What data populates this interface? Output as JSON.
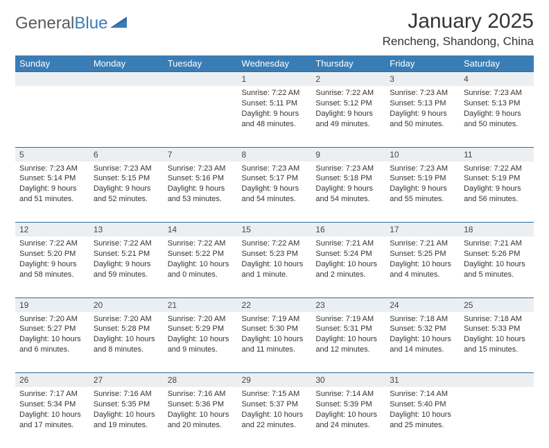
{
  "logo": {
    "word1": "General",
    "word2": "Blue"
  },
  "title": "January 2025",
  "location": "Rencheng, Shandong, China",
  "colors": {
    "header_bg": "#3a7db5",
    "header_text": "#ffffff",
    "daynum_bg": "#eceff2",
    "border": "#2d6a9c",
    "text": "#333333",
    "logo_gray": "#5a5a5a",
    "logo_blue": "#3a7db5",
    "page_bg": "#ffffff"
  },
  "weekdays": [
    "Sunday",
    "Monday",
    "Tuesday",
    "Wednesday",
    "Thursday",
    "Friday",
    "Saturday"
  ],
  "weeks": [
    {
      "nums": [
        "",
        "",
        "",
        "1",
        "2",
        "3",
        "4"
      ],
      "cells": [
        null,
        null,
        null,
        {
          "sunrise": "7:22 AM",
          "sunset": "5:11 PM",
          "daylight": "9 hours and 48 minutes."
        },
        {
          "sunrise": "7:22 AM",
          "sunset": "5:12 PM",
          "daylight": "9 hours and 49 minutes."
        },
        {
          "sunrise": "7:23 AM",
          "sunset": "5:13 PM",
          "daylight": "9 hours and 50 minutes."
        },
        {
          "sunrise": "7:23 AM",
          "sunset": "5:13 PM",
          "daylight": "9 hours and 50 minutes."
        }
      ]
    },
    {
      "nums": [
        "5",
        "6",
        "7",
        "8",
        "9",
        "10",
        "11"
      ],
      "cells": [
        {
          "sunrise": "7:23 AM",
          "sunset": "5:14 PM",
          "daylight": "9 hours and 51 minutes."
        },
        {
          "sunrise": "7:23 AM",
          "sunset": "5:15 PM",
          "daylight": "9 hours and 52 minutes."
        },
        {
          "sunrise": "7:23 AM",
          "sunset": "5:16 PM",
          "daylight": "9 hours and 53 minutes."
        },
        {
          "sunrise": "7:23 AM",
          "sunset": "5:17 PM",
          "daylight": "9 hours and 54 minutes."
        },
        {
          "sunrise": "7:23 AM",
          "sunset": "5:18 PM",
          "daylight": "9 hours and 54 minutes."
        },
        {
          "sunrise": "7:23 AM",
          "sunset": "5:19 PM",
          "daylight": "9 hours and 55 minutes."
        },
        {
          "sunrise": "7:22 AM",
          "sunset": "5:19 PM",
          "daylight": "9 hours and 56 minutes."
        }
      ]
    },
    {
      "nums": [
        "12",
        "13",
        "14",
        "15",
        "16",
        "17",
        "18"
      ],
      "cells": [
        {
          "sunrise": "7:22 AM",
          "sunset": "5:20 PM",
          "daylight": "9 hours and 58 minutes."
        },
        {
          "sunrise": "7:22 AM",
          "sunset": "5:21 PM",
          "daylight": "9 hours and 59 minutes."
        },
        {
          "sunrise": "7:22 AM",
          "sunset": "5:22 PM",
          "daylight": "10 hours and 0 minutes."
        },
        {
          "sunrise": "7:22 AM",
          "sunset": "5:23 PM",
          "daylight": "10 hours and 1 minute."
        },
        {
          "sunrise": "7:21 AM",
          "sunset": "5:24 PM",
          "daylight": "10 hours and 2 minutes."
        },
        {
          "sunrise": "7:21 AM",
          "sunset": "5:25 PM",
          "daylight": "10 hours and 4 minutes."
        },
        {
          "sunrise": "7:21 AM",
          "sunset": "5:26 PM",
          "daylight": "10 hours and 5 minutes."
        }
      ]
    },
    {
      "nums": [
        "19",
        "20",
        "21",
        "22",
        "23",
        "24",
        "25"
      ],
      "cells": [
        {
          "sunrise": "7:20 AM",
          "sunset": "5:27 PM",
          "daylight": "10 hours and 6 minutes."
        },
        {
          "sunrise": "7:20 AM",
          "sunset": "5:28 PM",
          "daylight": "10 hours and 8 minutes."
        },
        {
          "sunrise": "7:20 AM",
          "sunset": "5:29 PM",
          "daylight": "10 hours and 9 minutes."
        },
        {
          "sunrise": "7:19 AM",
          "sunset": "5:30 PM",
          "daylight": "10 hours and 11 minutes."
        },
        {
          "sunrise": "7:19 AM",
          "sunset": "5:31 PM",
          "daylight": "10 hours and 12 minutes."
        },
        {
          "sunrise": "7:18 AM",
          "sunset": "5:32 PM",
          "daylight": "10 hours and 14 minutes."
        },
        {
          "sunrise": "7:18 AM",
          "sunset": "5:33 PM",
          "daylight": "10 hours and 15 minutes."
        }
      ]
    },
    {
      "nums": [
        "26",
        "27",
        "28",
        "29",
        "30",
        "31",
        ""
      ],
      "cells": [
        {
          "sunrise": "7:17 AM",
          "sunset": "5:34 PM",
          "daylight": "10 hours and 17 minutes."
        },
        {
          "sunrise": "7:16 AM",
          "sunset": "5:35 PM",
          "daylight": "10 hours and 19 minutes."
        },
        {
          "sunrise": "7:16 AM",
          "sunset": "5:36 PM",
          "daylight": "10 hours and 20 minutes."
        },
        {
          "sunrise": "7:15 AM",
          "sunset": "5:37 PM",
          "daylight": "10 hours and 22 minutes."
        },
        {
          "sunrise": "7:14 AM",
          "sunset": "5:39 PM",
          "daylight": "10 hours and 24 minutes."
        },
        {
          "sunrise": "7:14 AM",
          "sunset": "5:40 PM",
          "daylight": "10 hours and 25 minutes."
        },
        null
      ]
    }
  ],
  "labels": {
    "sunrise": "Sunrise:",
    "sunset": "Sunset:",
    "daylight": "Daylight:"
  }
}
